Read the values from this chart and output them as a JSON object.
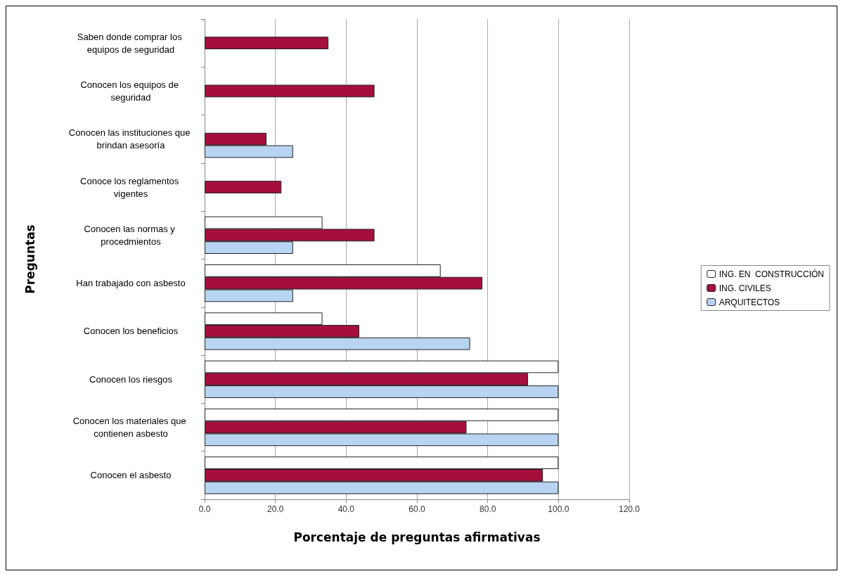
{
  "chart_data": {
    "type": "bar",
    "orientation": "horizontal",
    "xlabel": "Porcentaje de preguntas afirmativas",
    "ylabel": "Preguntas",
    "categories": [
      "Saben donde comprar los equipos de seguridad",
      "Conocen los equipos de seguridad",
      "Conocen las instituciones que brindan asesoría",
      "Conoce los reglamentos vigentes",
      "Conocen las normas y procedmientos",
      "Han trabajado con asbesto",
      "Conocen los beneficios",
      "Conocen los riesgos",
      "Conocen los materiales que contienen asbesto",
      "Conocen el asbesto"
    ],
    "series": [
      {
        "name": "ING. EN  CONSTRUCCIÓN",
        "color": "#ffffff",
        "values": [
          null,
          null,
          null,
          null,
          33.3,
          66.7,
          33.3,
          100,
          100,
          100
        ]
      },
      {
        "name": "ING. CIVILES",
        "color": "#a50f3c",
        "values": [
          35,
          48,
          17.5,
          21.7,
          48,
          78.5,
          43.7,
          91.4,
          74,
          95.6
        ]
      },
      {
        "name": "ARQUITECTOS",
        "color": "#b8d4f2",
        "values": [
          null,
          null,
          25,
          null,
          25,
          25,
          75,
          100,
          100,
          100
        ]
      }
    ],
    "xlim": [
      0,
      120
    ],
    "xticks": [
      {
        "value": 0,
        "label": "0.0"
      },
      {
        "value": 20,
        "label": "20.0"
      },
      {
        "value": 40,
        "label": "40.0"
      },
      {
        "value": 60,
        "label": "60.0"
      },
      {
        "value": 80,
        "label": "80.0"
      },
      {
        "value": 100,
        "label": "100.0"
      },
      {
        "value": 120,
        "label": "120.0"
      }
    ],
    "grid": "x",
    "legend": "right"
  }
}
